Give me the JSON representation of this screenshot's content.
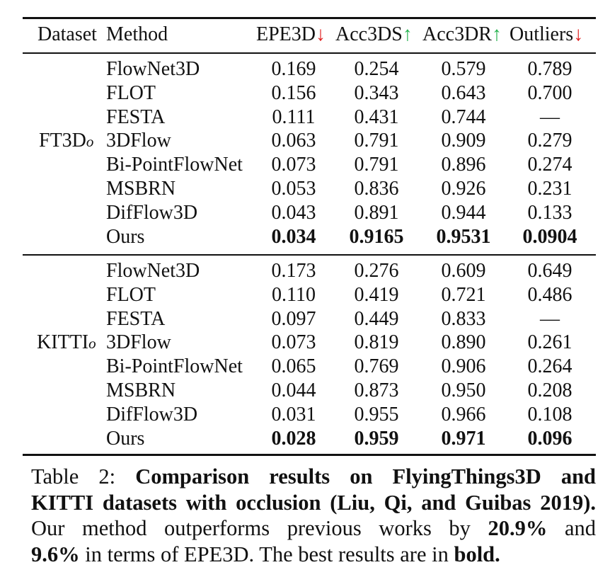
{
  "table": {
    "headers": {
      "dataset": "Dataset",
      "method": "Method",
      "epe3d": "EPE3D",
      "acc3ds": "Acc3DS",
      "acc3dr": "Acc3DR",
      "outliers": "Outliers",
      "arrow_down": "↓",
      "arrow_up": "↑"
    },
    "groups": [
      {
        "dataset": "FT3D",
        "subscript": "o",
        "rows": [
          {
            "method": "FlowNet3D",
            "epe3d": "0.169",
            "acc3ds": "0.254",
            "acc3dr": "0.579",
            "outliers": "0.789"
          },
          {
            "method": "FLOT",
            "epe3d": "0.156",
            "acc3ds": "0.343",
            "acc3dr": "0.643",
            "outliers": "0.700"
          },
          {
            "method": "FESTA",
            "epe3d": "0.111",
            "acc3ds": "0.431",
            "acc3dr": "0.744",
            "outliers": "—"
          },
          {
            "method": "3DFlow",
            "epe3d": "0.063",
            "acc3ds": "0.791",
            "acc3dr": "0.909",
            "outliers": "0.279"
          },
          {
            "method": "Bi-PointFlowNet",
            "epe3d": "0.073",
            "acc3ds": "0.791",
            "acc3dr": "0.896",
            "outliers": "0.274"
          },
          {
            "method": "MSBRN",
            "epe3d": "0.053",
            "acc3ds": "0.836",
            "acc3dr": "0.926",
            "outliers": "0.231"
          },
          {
            "method": "DifFlow3D",
            "epe3d": "0.043",
            "acc3ds": "0.891",
            "acc3dr": "0.944",
            "outliers": "0.133"
          },
          {
            "method": "Ours",
            "epe3d": "0.034",
            "acc3ds": "0.9165",
            "acc3dr": "0.9531",
            "outliers": "0.0904",
            "bold": true
          }
        ]
      },
      {
        "dataset": "KITTI",
        "subscript": "o",
        "rows": [
          {
            "method": "FlowNet3D",
            "epe3d": "0.173",
            "acc3ds": "0.276",
            "acc3dr": "0.609",
            "outliers": "0.649"
          },
          {
            "method": "FLOT",
            "epe3d": "0.110",
            "acc3ds": "0.419",
            "acc3dr": "0.721",
            "outliers": "0.486"
          },
          {
            "method": "FESTA",
            "epe3d": "0.097",
            "acc3ds": "0.449",
            "acc3dr": "0.833",
            "outliers": "—"
          },
          {
            "method": "3DFlow",
            "epe3d": "0.073",
            "acc3ds": "0.819",
            "acc3dr": "0.890",
            "outliers": "0.261"
          },
          {
            "method": "Bi-PointFlowNet",
            "epe3d": "0.065",
            "acc3ds": "0.769",
            "acc3dr": "0.906",
            "outliers": "0.264"
          },
          {
            "method": "MSBRN",
            "epe3d": "0.044",
            "acc3ds": "0.873",
            "acc3dr": "0.950",
            "outliers": "0.208"
          },
          {
            "method": "DifFlow3D",
            "epe3d": "0.031",
            "acc3ds": "0.955",
            "acc3dr": "0.966",
            "outliers": "0.108"
          },
          {
            "method": "Ours",
            "epe3d": "0.028",
            "acc3ds": "0.959",
            "acc3dr": "0.971",
            "outliers": "0.096",
            "bold": true
          }
        ]
      }
    ]
  },
  "caption": {
    "label": "Table 2:",
    "title_line1": "Comparison results on FlyingThings3D and",
    "title_line2": "KITTI datasets with occlusion (Liu, Qi, and Guibas 2019).",
    "body_line1_a": "Our method outperforms previous works by",
    "pct1": "20.9%",
    "body_line1_b": "and",
    "pct2": "9.6%",
    "body_line2_a": "in terms of EPE3D. The best results are in",
    "bold_word": "bold."
  },
  "colors": {
    "arrow_down": "#e02020",
    "arrow_up": "#22b14c"
  }
}
